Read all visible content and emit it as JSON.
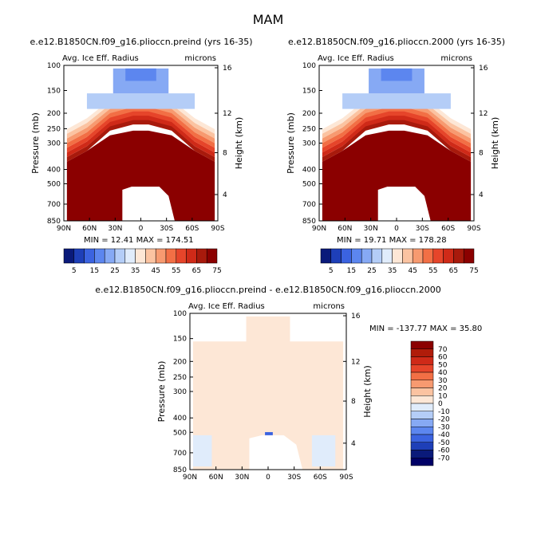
{
  "chart_data": [
    {
      "type": "heatmap",
      "panel": "preind",
      "title": "e.e12.B1850CN.f09_g16.plioccn.preind (yrs 16-35)",
      "subtitle_left": "Avg. Ice Eff. Radius",
      "subtitle_right": "microns",
      "xlabel": "",
      "ylabel": "Pressure (mb)",
      "ylabel_right": "Height (km)",
      "x_ticks": [
        "90N",
        "60N",
        "30N",
        "0",
        "30S",
        "60S",
        "90S"
      ],
      "y_ticks": [
        "100",
        "150",
        "200",
        "250",
        "300",
        "400",
        "500",
        "700",
        "850"
      ],
      "y_ticks_right": [
        "16",
        "12",
        "8",
        "4"
      ],
      "min_label": "MIN =",
      "min_value": "12.41",
      "max_label": "MAX =",
      "max_value": "174.51",
      "colorbar": {
        "orientation": "horizontal",
        "labels": [
          "5",
          "15",
          "25",
          "35",
          "45",
          "55",
          "65",
          "75"
        ],
        "colors": [
          "#0a1a7a",
          "#1e3fb8",
          "#3b63e0",
          "#5c86ef",
          "#86a9f4",
          "#b4cdf7",
          "#e0ecfb",
          "#fde7d6",
          "#fbc3a1",
          "#f79a70",
          "#f26f45",
          "#e6452a",
          "#cf2a18",
          "#a81a0c",
          "#8b0000"
        ]
      }
    },
    {
      "type": "heatmap",
      "panel": "pd2000",
      "title": "e.e12.B1850CN.f09_g16.plioccn.2000 (yrs 16-35)",
      "subtitle_left": "Avg. Ice Eff. Radius",
      "subtitle_right": "microns",
      "xlabel": "",
      "ylabel": "Pressure (mb)",
      "ylabel_right": "Height (km)",
      "x_ticks": [
        "90N",
        "60N",
        "30N",
        "0",
        "30S",
        "60S",
        "90S"
      ],
      "y_ticks": [
        "100",
        "150",
        "200",
        "250",
        "300",
        "400",
        "500",
        "700",
        "850"
      ],
      "y_ticks_right": [
        "16",
        "12",
        "8",
        "4"
      ],
      "min_label": "MIN =",
      "min_value": "19.71",
      "max_label": "MAX =",
      "max_value": "178.28",
      "colorbar": {
        "orientation": "horizontal",
        "labels": [
          "5",
          "15",
          "25",
          "35",
          "45",
          "55",
          "65",
          "75"
        ],
        "colors": [
          "#0a1a7a",
          "#1e3fb8",
          "#3b63e0",
          "#5c86ef",
          "#86a9f4",
          "#b4cdf7",
          "#e0ecfb",
          "#fde7d6",
          "#fbc3a1",
          "#f79a70",
          "#f26f45",
          "#e6452a",
          "#cf2a18",
          "#a81a0c",
          "#8b0000"
        ]
      }
    },
    {
      "type": "heatmap",
      "panel": "difference",
      "title": "e.e12.B1850CN.f09_g16.plioccn.preind - e.e12.B1850CN.f09_g16.plioccn.2000",
      "subtitle_left": "Avg. Ice Eff. Radius",
      "subtitle_right": "microns",
      "xlabel": "",
      "ylabel": "Pressure (mb)",
      "ylabel_right": "Height (km)",
      "x_ticks": [
        "90N",
        "60N",
        "30N",
        "0",
        "30S",
        "60S",
        "90S"
      ],
      "y_ticks": [
        "100",
        "150",
        "200",
        "250",
        "300",
        "400",
        "500",
        "700",
        "850"
      ],
      "y_ticks_right": [
        "16",
        "12",
        "8",
        "4"
      ],
      "min_label": "MIN =",
      "min_value": "-137.77",
      "max_label": "MAX =",
      "max_value": "35.80",
      "colorbar": {
        "orientation": "vertical",
        "labels": [
          "70",
          "60",
          "50",
          "40",
          "30",
          "20",
          "10",
          "0",
          "-10",
          "-20",
          "-30",
          "-40",
          "-50",
          "-60",
          "-70"
        ],
        "colors": [
          "#8b0000",
          "#b01c0a",
          "#cf2a18",
          "#e6452a",
          "#f26f45",
          "#f79a70",
          "#fbc3a1",
          "#fde7d6",
          "#e0ecfb",
          "#b4cdf7",
          "#86a9f4",
          "#5c86ef",
          "#3b63e0",
          "#1e3fb8",
          "#0a1a7a",
          "#000066"
        ]
      }
    }
  ],
  "figure": {
    "season": "MAM"
  }
}
